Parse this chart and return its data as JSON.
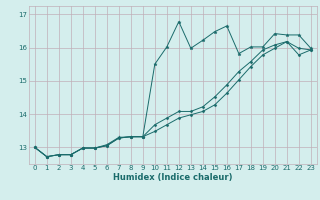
{
  "title": "",
  "xlabel": "Humidex (Indice chaleur)",
  "ylabel": "",
  "bg_color": "#d4eeed",
  "grid_color": "#c0b0b8",
  "line_color": "#1a6b6b",
  "xlim": [
    -0.5,
    23.5
  ],
  "ylim": [
    12.5,
    17.25
  ],
  "xticks": [
    0,
    1,
    2,
    3,
    4,
    5,
    6,
    7,
    8,
    9,
    10,
    11,
    12,
    13,
    14,
    15,
    16,
    17,
    18,
    19,
    20,
    21,
    22,
    23
  ],
  "yticks": [
    13,
    14,
    15,
    16,
    17
  ],
  "line1_x": [
    0,
    1,
    2,
    3,
    4,
    5,
    6,
    7,
    8,
    9,
    10,
    11,
    12,
    13,
    14,
    15,
    16,
    17,
    18,
    19,
    20,
    21,
    22,
    23
  ],
  "line1_y": [
    13.0,
    12.72,
    12.78,
    12.78,
    12.98,
    12.98,
    13.08,
    13.3,
    13.32,
    13.32,
    15.5,
    16.02,
    16.78,
    15.98,
    16.22,
    16.48,
    16.65,
    15.82,
    16.02,
    16.02,
    16.42,
    16.38,
    16.38,
    15.98
  ],
  "line2_x": [
    0,
    1,
    2,
    3,
    4,
    5,
    6,
    7,
    8,
    9,
    10,
    11,
    12,
    13,
    14,
    15,
    16,
    17,
    18,
    19,
    20,
    21,
    22,
    23
  ],
  "line2_y": [
    13.0,
    12.72,
    12.78,
    12.78,
    12.98,
    12.98,
    13.05,
    13.28,
    13.32,
    13.32,
    13.68,
    13.88,
    14.08,
    14.08,
    14.22,
    14.52,
    14.88,
    15.28,
    15.58,
    15.93,
    16.08,
    16.18,
    15.78,
    15.93
  ],
  "line3_x": [
    0,
    1,
    2,
    3,
    4,
    5,
    6,
    7,
    8,
    9,
    10,
    11,
    12,
    13,
    14,
    15,
    16,
    17,
    18,
    19,
    20,
    21,
    22,
    23
  ],
  "line3_y": [
    13.0,
    12.72,
    12.78,
    12.78,
    12.98,
    12.98,
    13.05,
    13.28,
    13.32,
    13.32,
    13.48,
    13.68,
    13.88,
    13.98,
    14.08,
    14.28,
    14.63,
    15.03,
    15.43,
    15.78,
    15.98,
    16.18,
    15.98,
    15.93
  ],
  "tick_fontsize": 5.0,
  "xlabel_fontsize": 6.0
}
